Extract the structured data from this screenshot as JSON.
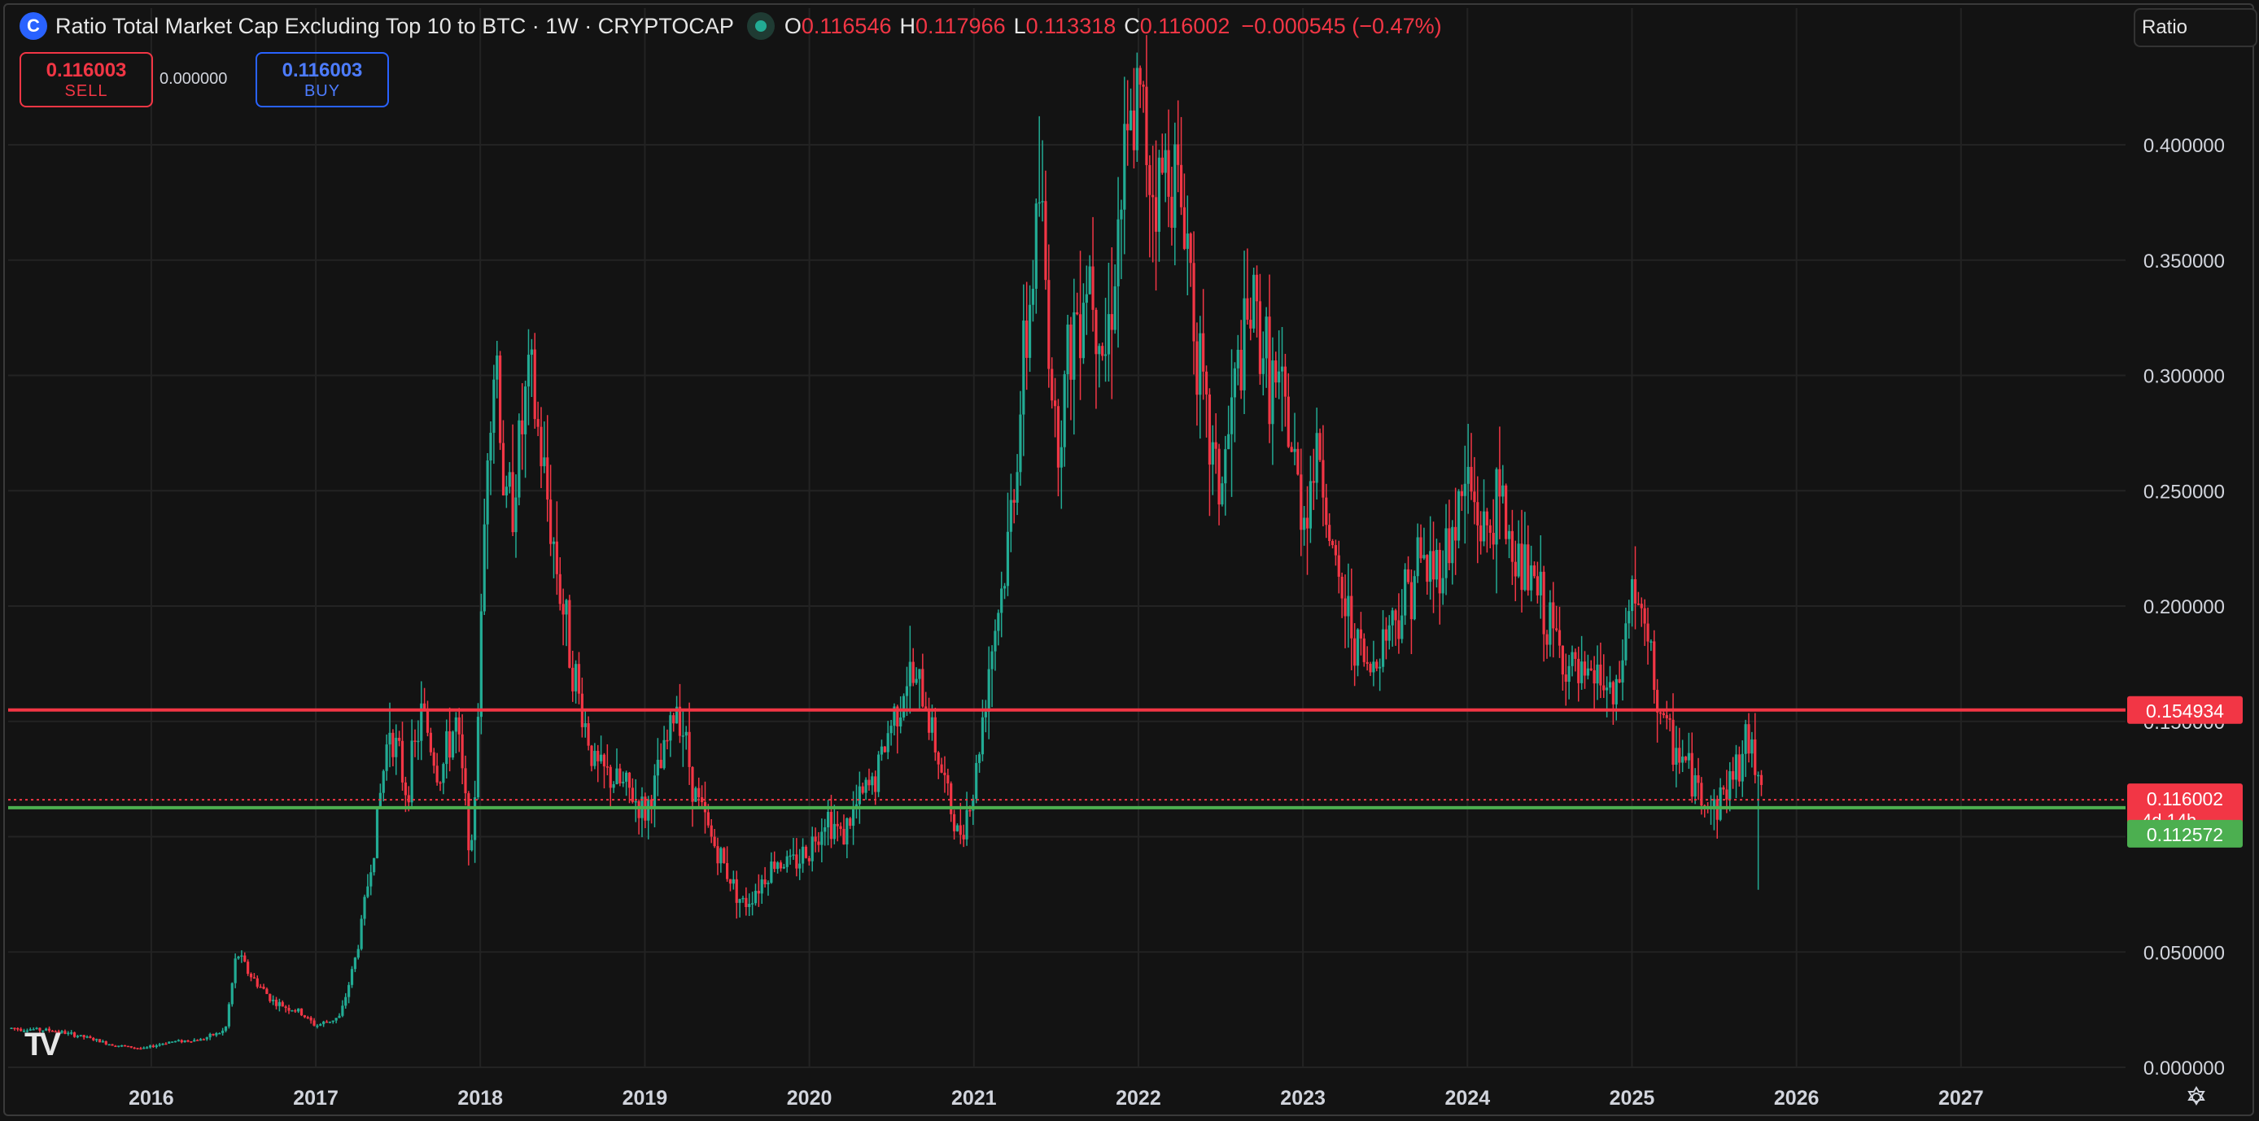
{
  "header": {
    "logo_glyph": "C",
    "title": "Ratio Total Market Cap Excluding Top 10 to BTC · 1W · CRYPTOCAP",
    "o_label": "O",
    "o_value": "0.116546",
    "h_label": "H",
    "h_value": "0.117966",
    "l_label": "L",
    "l_value": "0.113318",
    "c_label": "C",
    "c_value": "0.116002",
    "change": "−0.000545 (−0.47%)"
  },
  "trade": {
    "sell_price": "0.116003",
    "sell_label": "SELL",
    "spread": "0.000000",
    "buy_price": "0.116003",
    "buy_label": "BUY"
  },
  "scale_button": "Ratio",
  "colors": {
    "up": "#22ab94",
    "down": "#f23645",
    "background": "#131313",
    "grid": "#232323",
    "resistance": "#f23645",
    "support": "#4caf50",
    "axis_text": "#d1d4dc"
  },
  "chart_data": {
    "type": "candlestick",
    "timeframe": "1W",
    "yaxis": {
      "ticks": [
        "0.000000",
        "0.050000",
        "0.100000",
        "0.150000",
        "0.200000",
        "0.250000",
        "0.300000",
        "0.350000",
        "0.400000"
      ],
      "tick_values": [
        0,
        0.05,
        0.1,
        0.15,
        0.2,
        0.25,
        0.3,
        0.35,
        0.4
      ],
      "ylim": [
        0,
        0.45
      ]
    },
    "xaxis": {
      "ticks": [
        "2016",
        "2017",
        "2018",
        "2019",
        "2020",
        "2021",
        "2022",
        "2023",
        "2024",
        "2025",
        "2026",
        "2027"
      ],
      "tick_values": [
        2016,
        2017,
        2018,
        2019,
        2020,
        2021,
        2022,
        2023,
        2024,
        2025,
        2026,
        2027
      ],
      "xlim": [
        2015.13,
        2028.0
      ]
    },
    "grid": true,
    "horizontal_lines": [
      {
        "name": "resistance",
        "value": 0.154934,
        "label": "0.154934",
        "color": "#f23645"
      },
      {
        "name": "support",
        "value": 0.112572,
        "label": "0.112572",
        "color": "#4caf50"
      }
    ],
    "last_price": {
      "value": 0.116002,
      "label": "0.116002",
      "countdown": "4d 14h"
    },
    "price_path": [
      [
        2015.15,
        0.017
      ],
      [
        2015.4,
        0.016
      ],
      [
        2015.6,
        0.013
      ],
      [
        2015.75,
        0.01
      ],
      [
        2015.95,
        0.008
      ],
      [
        2016.1,
        0.011
      ],
      [
        2016.3,
        0.012
      ],
      [
        2016.45,
        0.016
      ],
      [
        2016.52,
        0.05
      ],
      [
        2016.6,
        0.04
      ],
      [
        2016.75,
        0.028
      ],
      [
        2016.9,
        0.024
      ],
      [
        2017.0,
        0.018
      ],
      [
        2017.15,
        0.022
      ],
      [
        2017.25,
        0.05
      ],
      [
        2017.35,
        0.095
      ],
      [
        2017.45,
        0.15
      ],
      [
        2017.55,
        0.12
      ],
      [
        2017.65,
        0.155
      ],
      [
        2017.75,
        0.125
      ],
      [
        2017.85,
        0.15
      ],
      [
        2017.95,
        0.09
      ],
      [
        2018.0,
        0.18
      ],
      [
        2018.05,
        0.29
      ],
      [
        2018.1,
        0.31
      ],
      [
        2018.15,
        0.24
      ],
      [
        2018.2,
        0.25
      ],
      [
        2018.3,
        0.3
      ],
      [
        2018.4,
        0.25
      ],
      [
        2018.5,
        0.2
      ],
      [
        2018.6,
        0.16
      ],
      [
        2018.7,
        0.13
      ],
      [
        2018.8,
        0.125
      ],
      [
        2018.9,
        0.12
      ],
      [
        2019.0,
        0.11
      ],
      [
        2019.1,
        0.13
      ],
      [
        2019.2,
        0.16
      ],
      [
        2019.3,
        0.12
      ],
      [
        2019.4,
        0.1
      ],
      [
        2019.5,
        0.085
      ],
      [
        2019.6,
        0.07
      ],
      [
        2019.7,
        0.08
      ],
      [
        2019.8,
        0.09
      ],
      [
        2019.9,
        0.088
      ],
      [
        2020.0,
        0.095
      ],
      [
        2020.1,
        0.11
      ],
      [
        2020.2,
        0.1
      ],
      [
        2020.3,
        0.115
      ],
      [
        2020.4,
        0.125
      ],
      [
        2020.5,
        0.15
      ],
      [
        2020.6,
        0.17
      ],
      [
        2020.7,
        0.16
      ],
      [
        2020.8,
        0.13
      ],
      [
        2020.9,
        0.1
      ],
      [
        2021.0,
        0.12
      ],
      [
        2021.1,
        0.18
      ],
      [
        2021.2,
        0.22
      ],
      [
        2021.3,
        0.3
      ],
      [
        2021.4,
        0.38
      ],
      [
        2021.5,
        0.27
      ],
      [
        2021.6,
        0.32
      ],
      [
        2021.7,
        0.35
      ],
      [
        2021.8,
        0.31
      ],
      [
        2021.9,
        0.38
      ],
      [
        2022.0,
        0.42
      ],
      [
        2022.1,
        0.38
      ],
      [
        2022.2,
        0.395
      ],
      [
        2022.3,
        0.36
      ],
      [
        2022.4,
        0.28
      ],
      [
        2022.5,
        0.25
      ],
      [
        2022.6,
        0.3
      ],
      [
        2022.7,
        0.33
      ],
      [
        2022.8,
        0.3
      ],
      [
        2022.9,
        0.28
      ],
      [
        2023.0,
        0.24
      ],
      [
        2023.1,
        0.27
      ],
      [
        2023.2,
        0.21
      ],
      [
        2023.3,
        0.19
      ],
      [
        2023.4,
        0.17
      ],
      [
        2023.5,
        0.19
      ],
      [
        2023.6,
        0.2
      ],
      [
        2023.7,
        0.22
      ],
      [
        2023.8,
        0.215
      ],
      [
        2023.9,
        0.23
      ],
      [
        2024.0,
        0.255
      ],
      [
        2024.1,
        0.23
      ],
      [
        2024.2,
        0.245
      ],
      [
        2024.3,
        0.22
      ],
      [
        2024.4,
        0.21
      ],
      [
        2024.5,
        0.19
      ],
      [
        2024.6,
        0.175
      ],
      [
        2024.7,
        0.165
      ],
      [
        2024.8,
        0.17
      ],
      [
        2024.9,
        0.155
      ],
      [
        2025.0,
        0.21
      ],
      [
        2025.1,
        0.18
      ],
      [
        2025.2,
        0.145
      ],
      [
        2025.3,
        0.135
      ],
      [
        2025.4,
        0.12
      ],
      [
        2025.5,
        0.112
      ],
      [
        2025.6,
        0.125
      ],
      [
        2025.7,
        0.14
      ],
      [
        2025.78,
        0.13
      ],
      [
        2025.8,
        0.116
      ]
    ],
    "peaks": {
      "2022_high": 0.44,
      "2018_high": 0.315,
      "2025_wick_low": 0.077
    }
  }
}
